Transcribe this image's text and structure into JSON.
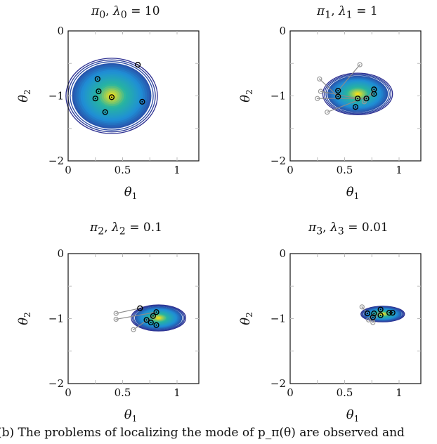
{
  "caption": "(b) The problems of localizing the mode of p_π(θ) are observed and",
  "chart_data": [
    {
      "type": "scatter",
      "title": "π0, λ0 = 10",
      "title_parts": {
        "pi": "π",
        "pi_sub": "0",
        "lambda": "λ",
        "lambda_sub": "0",
        "value": "10"
      },
      "xlabel": "θ1",
      "ylabel": "θ2",
      "xlim": [
        0,
        1.2
      ],
      "ylim": [
        -2,
        0
      ],
      "xticks": [
        "0",
        "0.5",
        "1"
      ],
      "yticks": [
        "0",
        "−1",
        "−2"
      ],
      "contour_center": [
        0.4,
        -1.0
      ],
      "contour_radii": [
        0.42,
        0.58
      ],
      "points": [
        [
          0.64,
          -0.52
        ],
        [
          0.27,
          -0.74
        ],
        [
          0.28,
          -0.93
        ],
        [
          0.25,
          -1.04
        ],
        [
          0.4,
          -1.02
        ],
        [
          0.68,
          -1.09
        ],
        [
          0.34,
          -1.25
        ]
      ],
      "previous_points": [],
      "grid": false
    },
    {
      "type": "scatter",
      "title": "π1, λ1 = 1",
      "title_parts": {
        "pi": "π",
        "pi_sub": "1",
        "lambda": "λ",
        "lambda_sub": "1",
        "value": "1"
      },
      "xlabel": "θ1",
      "ylabel": "θ2",
      "xlim": [
        0,
        1.2
      ],
      "ylim": [
        -2,
        0
      ],
      "xticks": [
        "0",
        "0.5",
        "1"
      ],
      "yticks": [
        "0",
        "−1",
        "−2"
      ],
      "contour_center": [
        0.62,
        -0.97
      ],
      "contour_radii": [
        0.32,
        0.32
      ],
      "points": [
        [
          0.44,
          -0.92
        ],
        [
          0.44,
          -1.01
        ],
        [
          0.62,
          -1.04
        ],
        [
          0.7,
          -1.04
        ],
        [
          0.77,
          -0.9
        ],
        [
          0.77,
          -0.97
        ],
        [
          0.6,
          -1.17
        ]
      ],
      "previous_points": [
        [
          0.64,
          -0.52
        ],
        [
          0.27,
          -0.74
        ],
        [
          0.28,
          -0.93
        ],
        [
          0.25,
          -1.04
        ],
        [
          0.68,
          -1.09
        ],
        [
          0.34,
          -1.25
        ]
      ],
      "grid": false
    },
    {
      "type": "scatter",
      "title": "π2, λ2 = 0.1",
      "title_parts": {
        "pi": "π",
        "pi_sub": "2",
        "lambda": "λ",
        "lambda_sub": "2",
        "value": "0.1"
      },
      "xlabel": "θ1",
      "ylabel": "θ2",
      "xlim": [
        0,
        1.2
      ],
      "ylim": [
        -2,
        0
      ],
      "xticks": [
        "0",
        "0.5",
        "1"
      ],
      "yticks": [
        "0",
        "−1",
        "−2"
      ],
      "contour_center": [
        0.83,
        -0.99
      ],
      "contour_radii": [
        0.25,
        0.2
      ],
      "points": [
        [
          0.66,
          -0.84
        ],
        [
          0.81,
          -0.9
        ],
        [
          0.78,
          -0.96
        ],
        [
          0.72,
          -1.02
        ],
        [
          0.76,
          -1.06
        ],
        [
          0.81,
          -1.1
        ]
      ],
      "previous_points": [
        [
          0.44,
          -0.92
        ],
        [
          0.44,
          -1.01
        ],
        [
          0.6,
          -1.17
        ]
      ],
      "grid": false
    },
    {
      "type": "scatter",
      "title": "π3, λ3 = 0.01",
      "title_parts": {
        "pi": "π",
        "pi_sub": "3",
        "lambda": "λ",
        "lambda_sub": "3",
        "value": "0.01"
      },
      "xlabel": "θ1",
      "ylabel": "θ2",
      "xlim": [
        0,
        1.2
      ],
      "ylim": [
        -2,
        0
      ],
      "xticks": [
        "0",
        "0.5",
        "1"
      ],
      "yticks": [
        "0",
        "−1",
        "−2"
      ],
      "contour_center": [
        0.85,
        -0.93
      ],
      "contour_radii": [
        0.2,
        0.12
      ],
      "points": [
        [
          0.71,
          -0.92
        ],
        [
          0.77,
          -0.92
        ],
        [
          0.83,
          -0.86
        ],
        [
          0.91,
          -0.91
        ],
        [
          0.94,
          -0.91
        ],
        [
          0.76,
          -0.98
        ],
        [
          0.83,
          -0.95
        ]
      ],
      "previous_points": [
        [
          0.66,
          -0.82
        ],
        [
          0.72,
          -1.02
        ],
        [
          0.76,
          -1.06
        ]
      ],
      "grid": false
    }
  ],
  "colors": {
    "outer_contour": "#2e3192",
    "mid_contour": "#1f8fd6",
    "inner_contour": "#27b5a0",
    "peak": "#f9e11a",
    "point": "#000000",
    "previous_point": "#999999",
    "axis": "#111111",
    "tick": "#bbbbbb"
  }
}
